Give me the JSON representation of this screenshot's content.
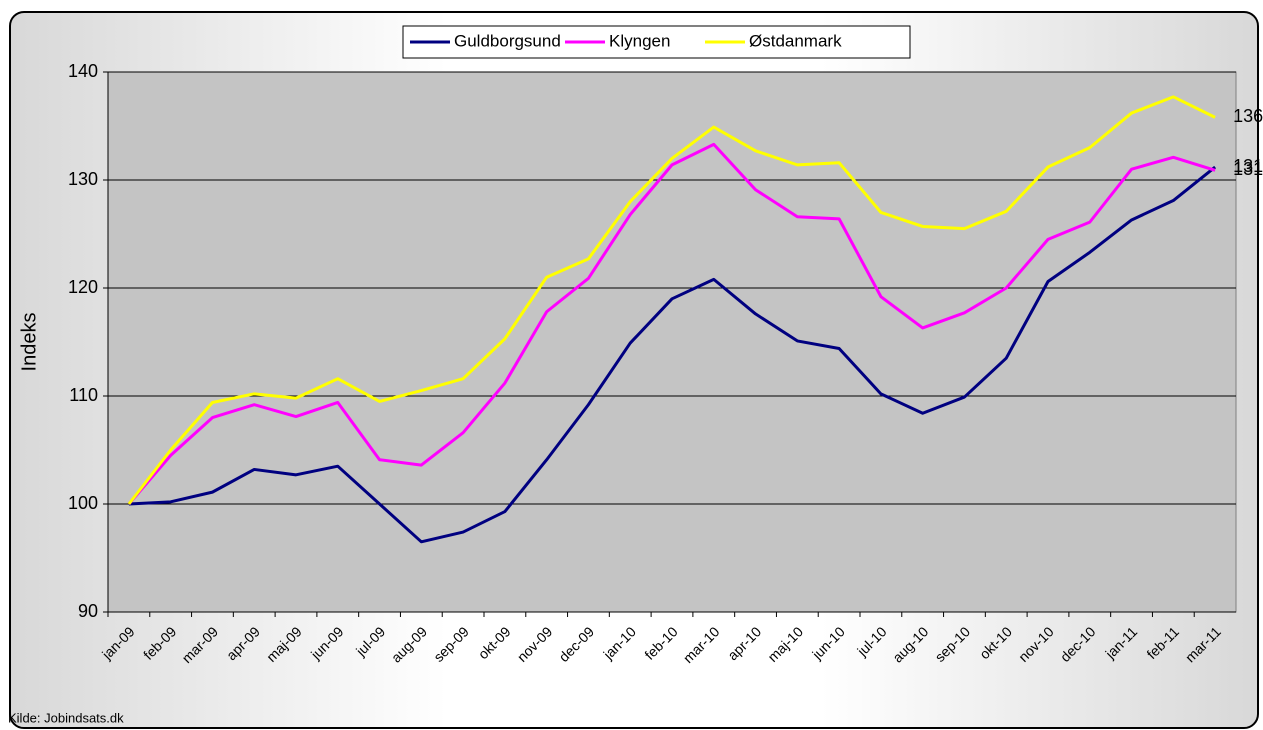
{
  "chart_data": {
    "type": "line",
    "ylabel": "Indeks",
    "source": "Kilde: Jobindsats.dk",
    "legend": "top",
    "grid": true,
    "ylim": [
      90,
      140
    ],
    "yticks": [
      90,
      100,
      110,
      120,
      130,
      140
    ],
    "categories": [
      "jan-09",
      "feb-09",
      "mar-09",
      "apr-09",
      "maj-09",
      "jun-09",
      "jul-09",
      "aug-09",
      "sep-09",
      "okt-09",
      "nov-09",
      "dec-09",
      "jan-10",
      "feb-10",
      "mar-10",
      "apr-10",
      "maj-10",
      "jun-10",
      "jul-10",
      "aug-10",
      "sep-10",
      "okt-10",
      "nov-10",
      "dec-10",
      "jan-11",
      "feb-11",
      "mar-11"
    ],
    "series": [
      {
        "name": "Guldborgsund",
        "color": "#000080",
        "values": [
          100,
          100.2,
          101.1,
          103.2,
          102.7,
          103.5,
          100,
          96.5,
          97.4,
          99.3,
          104.1,
          109.2,
          114.9,
          119,
          120.8,
          117.6,
          115.1,
          114.4,
          110.2,
          108.4,
          109.9,
          113.5,
          120.6,
          123.3,
          126.3,
          128.1,
          131.2
        ],
        "value_labels": [
          null,
          null,
          null,
          null,
          null,
          null,
          null,
          null,
          null,
          null,
          null,
          null,
          null,
          null,
          null,
          null,
          null,
          null,
          null,
          null,
          null,
          null,
          null,
          null,
          null,
          null,
          "131"
        ]
      },
      {
        "name": "Klyngen",
        "color": "#ff00ff",
        "values": [
          100,
          104.5,
          108,
          109.2,
          108.1,
          109.4,
          104.1,
          103.6,
          106.6,
          111.2,
          117.8,
          120.9,
          126.8,
          131.4,
          133.3,
          129.1,
          126.6,
          126.4,
          119.2,
          116.3,
          117.7,
          120,
          124.5,
          126.1,
          131,
          132.1,
          130.9
        ],
        "value_labels": [
          null,
          null,
          null,
          null,
          null,
          null,
          null,
          null,
          null,
          null,
          null,
          null,
          null,
          null,
          null,
          null,
          null,
          null,
          null,
          null,
          null,
          null,
          null,
          null,
          null,
          null,
          "131"
        ]
      },
      {
        "name": "Østdanmark",
        "color": "#ffff00",
        "values": [
          100,
          105,
          109.4,
          110.2,
          109.8,
          111.6,
          109.5,
          110.5,
          111.6,
          115.3,
          121,
          122.7,
          128,
          132,
          134.9,
          132.7,
          131.4,
          131.6,
          127,
          125.7,
          125.5,
          127.1,
          131.2,
          133,
          136.2,
          137.7,
          135.8
        ],
        "value_labels": [
          null,
          null,
          null,
          null,
          null,
          null,
          null,
          null,
          null,
          null,
          null,
          null,
          null,
          null,
          null,
          null,
          null,
          null,
          null,
          null,
          null,
          null,
          null,
          null,
          null,
          null,
          "136"
        ]
      }
    ]
  }
}
